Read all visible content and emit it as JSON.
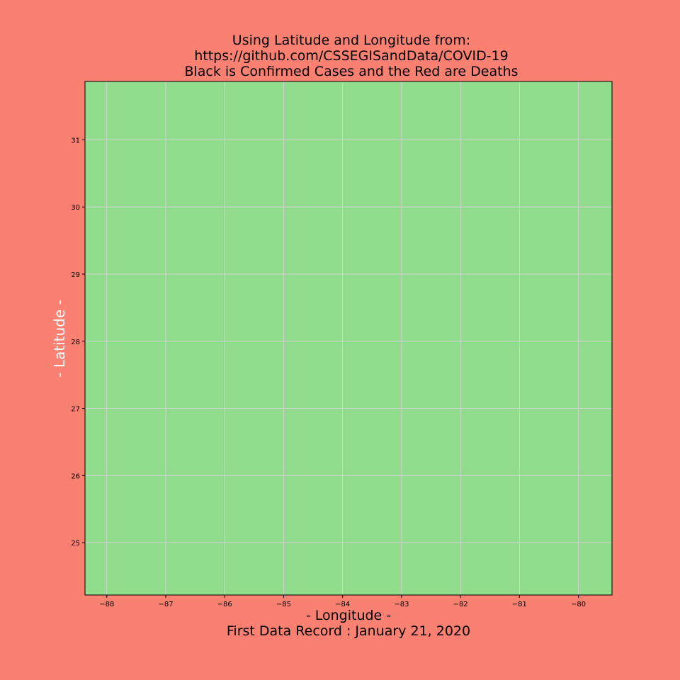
{
  "background_color": "#fa8072",
  "chart_data": {
    "type": "scatter",
    "title_lines": [
      "Using Latitude and Longitude from:",
      "https://github.com/CSSEGISandData/COVID-19",
      "Black is Confirmed Cases and the Red are Deaths"
    ],
    "xlabel_lines": [
      "- Longitude -",
      "First Data Record : January 21, 2020"
    ],
    "ylabel": "- Latitude -",
    "xlim": [
      -88.37,
      -79.43
    ],
    "ylim": [
      24.22,
      31.87
    ],
    "x_ticks": [
      -88,
      -87,
      -86,
      -85,
      -84,
      -83,
      -82,
      -81,
      -80
    ],
    "x_tick_labels": [
      "−88",
      "−87",
      "−86",
      "−85",
      "−84",
      "−83",
      "−82",
      "−81",
      "−80"
    ],
    "y_ticks": [
      25,
      26,
      27,
      28,
      29,
      30,
      31
    ],
    "y_tick_labels": [
      "25",
      "26",
      "27",
      "28",
      "29",
      "30",
      "31"
    ],
    "grid": true,
    "plot_background": "#90db8c",
    "grid_color": "#d3d3d3",
    "series": [
      {
        "color": "#000000",
        "points": []
      },
      {
        "color": "#ff0000",
        "points": []
      }
    ]
  }
}
